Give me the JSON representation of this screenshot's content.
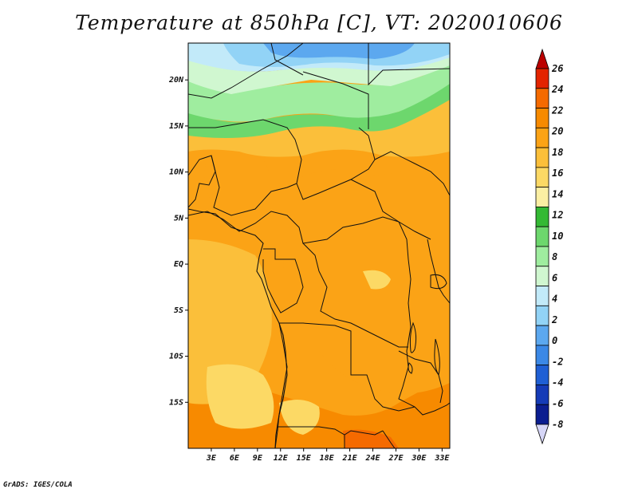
{
  "title": "Temperature at 850hPa [C], VT: 2020010606",
  "credit": "GrADS: IGES/COLA",
  "map": {
    "lat_range": [
      -20,
      24
    ],
    "lon_range": [
      0,
      34
    ],
    "lat_ticks": [
      "20N",
      "15N",
      "10N",
      "5N",
      "EQ",
      "5S",
      "10S",
      "15S"
    ],
    "lon_ticks": [
      "3E",
      "6E",
      "9E",
      "12E",
      "15E",
      "18E",
      "21E",
      "24E",
      "27E",
      "30E",
      "33E"
    ]
  },
  "colorbar": {
    "levels": [
      "26",
      "24",
      "22",
      "20",
      "18",
      "16",
      "14",
      "12",
      "10",
      "8",
      "6",
      "4",
      "2",
      "0",
      "-2",
      "-4",
      "-6",
      "-8"
    ],
    "colors": [
      "#bb0000",
      "#e32400",
      "#f56a00",
      "#f78a00",
      "#fba316",
      "#fbbf3a",
      "#fcd965",
      "#fbefa3",
      "#34b934",
      "#6dd76d",
      "#9fed9f",
      "#d0f7d0",
      "#c2eaf9",
      "#92d3f6",
      "#5ca8ef",
      "#3b88e6",
      "#1f5fd4",
      "#153bb7",
      "#0b1d90",
      "#d6d6f7"
    ]
  },
  "palette": {
    "hot": "#f56a00",
    "warm": "#f78a00",
    "orange": "#fba316",
    "light_orange": "#fbbf3a",
    "yellow": "#fcd965",
    "pale_yellow": "#fbefa3",
    "green": "#6dd76d",
    "light_green": "#9fed9f",
    "pale_green": "#d0f7d0",
    "pale_blue": "#c2eaf9",
    "light_blue": "#92d3f6",
    "blue": "#5ca8ef"
  }
}
